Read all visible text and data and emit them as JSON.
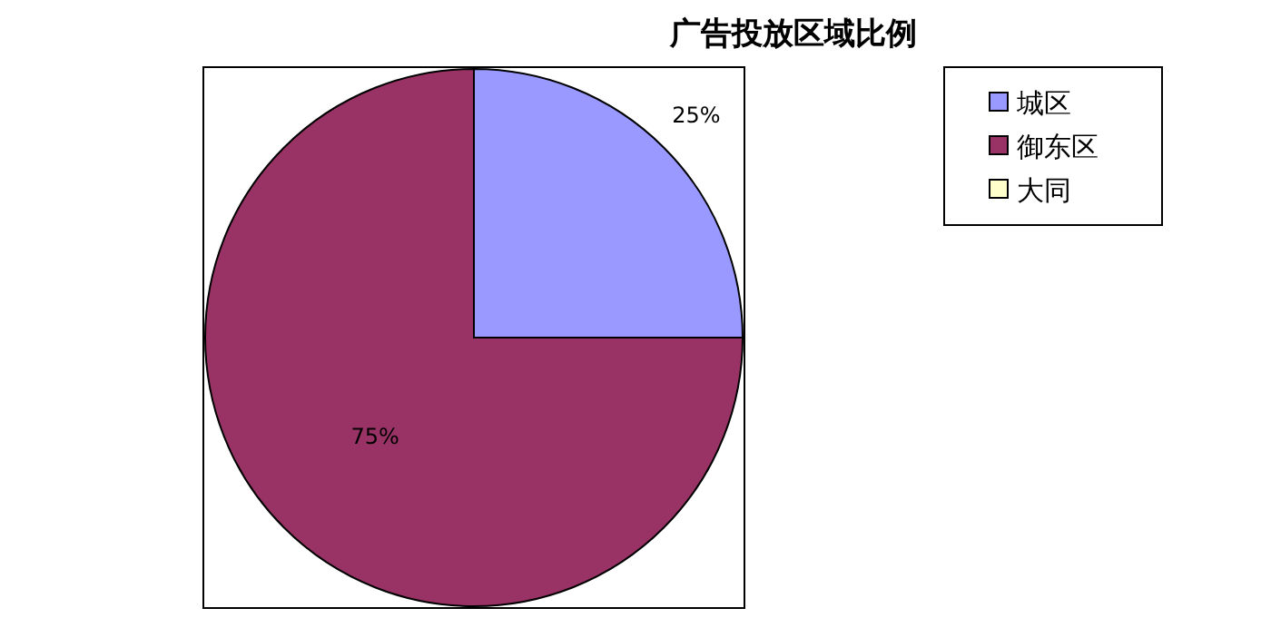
{
  "chart_data": {
    "type": "pie",
    "title": "广告投放区域比例",
    "categories": [
      "城区",
      "御东区",
      "大同"
    ],
    "values": [
      25,
      75,
      0
    ],
    "colors": [
      "#9999ff",
      "#993366",
      "#ffffcc"
    ],
    "value_labels": [
      "25%",
      "75%",
      null
    ],
    "legend": "top right"
  }
}
